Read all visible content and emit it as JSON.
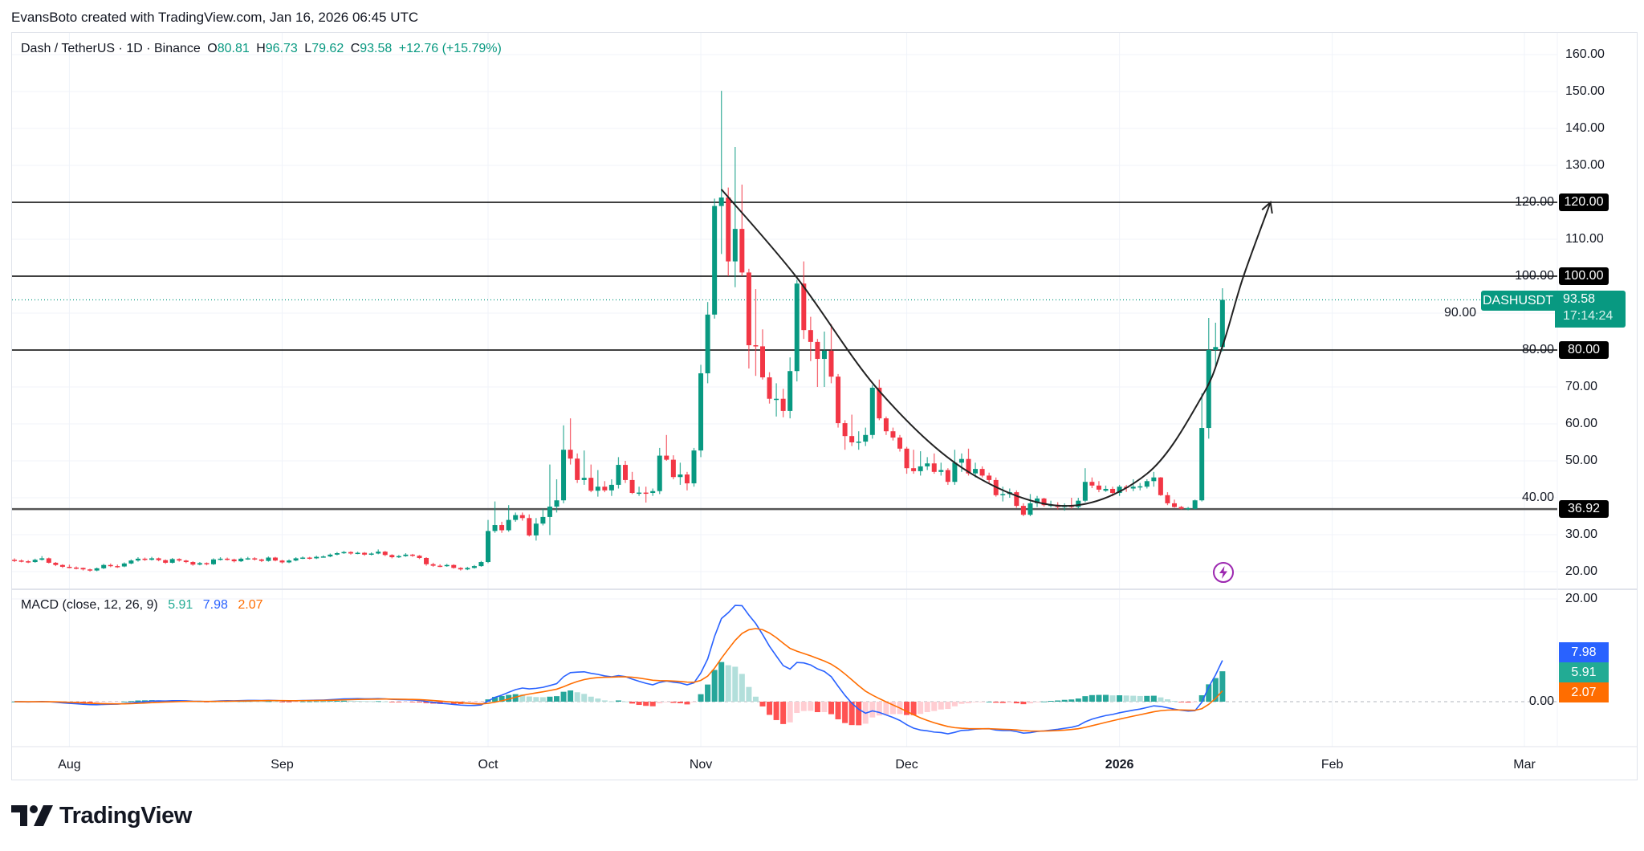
{
  "header": {
    "credit": "EvansBoto created with TradingView.com, Jan 16, 2026 06:45 UTC"
  },
  "legend": {
    "symbol": "Dash / TetherUS · 1D · Binance",
    "o_label": "O",
    "o": "80.81",
    "h_label": "H",
    "h": "96.73",
    "l_label": "L",
    "l": "79.62",
    "c_label": "C",
    "c": "93.58",
    "change": "+12.76 (+15.79%)"
  },
  "price_tag": {
    "symbol": "DASHUSDT",
    "price": "93.58",
    "countdown": "17:14:24"
  },
  "macd_legend": {
    "title": "MACD (close, 12, 26, 9)",
    "histogram": "5.91",
    "macd": "7.98",
    "signal": "2.07"
  },
  "logo": {
    "text": "TradingView"
  },
  "icons": {
    "alert": "lightning-bolt-icon",
    "logo": "tradingview-logo-icon"
  },
  "colors": {
    "up": "#089981",
    "down": "#f23645",
    "macd": "#2962ff",
    "signal": "#ff6d00",
    "hist_up_strong": "#26a69a",
    "hist_up_weak": "#b2dfdb",
    "hist_down_strong": "#ff5252",
    "hist_down_weak": "#ffcdd2",
    "level": "#000000",
    "alert": "#9c27b0"
  },
  "chart_data": {
    "type": "candlestick",
    "symbol": "DASHUSDT",
    "interval": "1D",
    "price_axis": {
      "range": [
        15,
        165
      ],
      "ticks": [
        "160.00",
        "150.00",
        "140.00",
        "130.00",
        "120.00",
        "110.00",
        "100.00",
        "90.00",
        "80.00",
        "70.00",
        "60.00",
        "50.00",
        "40.00",
        "30.00",
        "20.00"
      ],
      "grid": true
    },
    "time_axis": {
      "labels": [
        {
          "label": "Aug",
          "date": "2025-08-01"
        },
        {
          "label": "Sep",
          "date": "2025-09-01"
        },
        {
          "label": "Oct",
          "date": "2025-10-01"
        },
        {
          "label": "Nov",
          "date": "2025-11-01"
        },
        {
          "label": "Dec",
          "date": "2025-12-01"
        },
        {
          "label": "2026",
          "date": "2026-01-01",
          "bold": true
        },
        {
          "label": "Feb",
          "date": "2026-02-01"
        },
        {
          "label": "Mar",
          "date": "2026-03-01"
        }
      ]
    },
    "levels": [
      {
        "value": 120,
        "label": "120.00"
      },
      {
        "value": 100,
        "label": "100.00"
      },
      {
        "value": 80,
        "label": "80.00"
      },
      {
        "value": 36.92,
        "label": "36.92"
      }
    ],
    "last_price": 93.58,
    "curve_drawing": [
      [
        "2025-11-04",
        123.5
      ],
      [
        "2025-11-15",
        99.6
      ],
      [
        "2025-11-27",
        68.9
      ],
      [
        "2025-12-10",
        47
      ],
      [
        "2025-12-24",
        37.8
      ],
      [
        "2026-01-05",
        46.5
      ],
      [
        "2026-01-13",
        67.4
      ],
      [
        "2026-01-16",
        81
      ],
      [
        "2026-01-19",
        99.6
      ],
      [
        "2026-01-23",
        120
      ]
    ],
    "macd_axis": {
      "ticks": [
        "20.00",
        "0.00"
      ],
      "values": [
        20,
        0
      ]
    },
    "macd_params": {
      "source": "close",
      "fast": 12,
      "slow": 26,
      "signal": 9
    },
    "candles_fields": [
      "date",
      "open",
      "high",
      "low",
      "close"
    ],
    "candles": [
      [
        "2025-07-24",
        23.2,
        23.6,
        22.6,
        23.0
      ],
      [
        "2025-07-25",
        23.0,
        23.3,
        22.5,
        22.8
      ],
      [
        "2025-07-26",
        22.8,
        23.1,
        22.3,
        22.6
      ],
      [
        "2025-07-27",
        22.6,
        23.5,
        22.4,
        23.2
      ],
      [
        "2025-07-28",
        23.2,
        24.2,
        23.0,
        23.6
      ],
      [
        "2025-07-29",
        23.6,
        23.8,
        22.2,
        22.4
      ],
      [
        "2025-07-30",
        22.4,
        22.6,
        21.5,
        21.8
      ],
      [
        "2025-07-31",
        21.8,
        22.0,
        21.0,
        21.3
      ],
      [
        "2025-08-01",
        21.3,
        21.9,
        20.9,
        21.1
      ],
      [
        "2025-08-02",
        21.1,
        21.4,
        20.6,
        21.0
      ],
      [
        "2025-08-03",
        21.0,
        21.1,
        20.3,
        20.6
      ],
      [
        "2025-08-04",
        20.6,
        20.8,
        20.0,
        20.3
      ],
      [
        "2025-08-05",
        20.3,
        21.1,
        20.1,
        20.9
      ],
      [
        "2025-08-06",
        20.9,
        22.1,
        20.7,
        21.8
      ],
      [
        "2025-08-07",
        21.8,
        22.2,
        21.2,
        21.5
      ],
      [
        "2025-08-08",
        21.5,
        21.9,
        21.0,
        21.4
      ],
      [
        "2025-08-09",
        21.4,
        22.5,
        21.2,
        22.2
      ],
      [
        "2025-08-10",
        22.2,
        23.3,
        22.0,
        23.0
      ],
      [
        "2025-08-11",
        23.0,
        23.9,
        22.7,
        23.5
      ],
      [
        "2025-08-12",
        23.5,
        23.8,
        22.9,
        23.2
      ],
      [
        "2025-08-13",
        23.2,
        24.0,
        23.0,
        23.6
      ],
      [
        "2025-08-14",
        23.6,
        23.8,
        22.8,
        23.1
      ],
      [
        "2025-08-15",
        23.1,
        23.3,
        22.1,
        22.4
      ],
      [
        "2025-08-16",
        22.4,
        23.7,
        22.2,
        23.4
      ],
      [
        "2025-08-17",
        23.4,
        23.6,
        22.7,
        23.0
      ],
      [
        "2025-08-18",
        23.0,
        23.2,
        22.3,
        22.6
      ],
      [
        "2025-08-19",
        22.6,
        22.8,
        21.6,
        21.9
      ],
      [
        "2025-08-20",
        21.9,
        22.6,
        21.7,
        22.3
      ],
      [
        "2025-08-21",
        22.3,
        22.5,
        21.7,
        22.0
      ],
      [
        "2025-08-22",
        22.0,
        23.6,
        21.8,
        23.3
      ],
      [
        "2025-08-23",
        23.3,
        23.9,
        23.0,
        23.5
      ],
      [
        "2025-08-24",
        23.5,
        23.8,
        23.0,
        23.3
      ],
      [
        "2025-08-25",
        23.3,
        23.5,
        22.5,
        22.8
      ],
      [
        "2025-08-26",
        22.8,
        23.8,
        22.6,
        23.5
      ],
      [
        "2025-08-27",
        23.5,
        24.0,
        23.2,
        23.6
      ],
      [
        "2025-08-28",
        23.6,
        23.9,
        23.0,
        23.3
      ],
      [
        "2025-08-29",
        23.3,
        23.5,
        22.6,
        22.9
      ],
      [
        "2025-08-30",
        22.9,
        24.1,
        22.7,
        23.8
      ],
      [
        "2025-08-31",
        23.8,
        24.0,
        22.8,
        23.0
      ],
      [
        "2025-09-01",
        23.0,
        23.2,
        22.2,
        22.5
      ],
      [
        "2025-09-02",
        22.5,
        23.3,
        22.3,
        23.0
      ],
      [
        "2025-09-03",
        23.0,
        23.9,
        22.8,
        23.6
      ],
      [
        "2025-09-04",
        23.6,
        24.1,
        23.4,
        23.8
      ],
      [
        "2025-09-05",
        23.8,
        24.0,
        23.3,
        23.6
      ],
      [
        "2025-09-06",
        23.6,
        24.3,
        23.4,
        24.0
      ],
      [
        "2025-09-07",
        24.0,
        24.4,
        23.8,
        24.1
      ],
      [
        "2025-09-08",
        24.1,
        24.9,
        23.9,
        24.6
      ],
      [
        "2025-09-09",
        24.6,
        25.3,
        24.4,
        25.0
      ],
      [
        "2025-09-10",
        25.0,
        25.6,
        24.8,
        25.3
      ],
      [
        "2025-09-11",
        25.3,
        25.5,
        24.6,
        24.9
      ],
      [
        "2025-09-12",
        24.9,
        25.4,
        24.7,
        25.1
      ],
      [
        "2025-09-13",
        25.1,
        25.3,
        24.3,
        24.6
      ],
      [
        "2025-09-14",
        24.6,
        25.2,
        24.4,
        24.9
      ],
      [
        "2025-09-15",
        24.9,
        26.0,
        24.7,
        25.4
      ],
      [
        "2025-09-16",
        25.4,
        25.6,
        24.2,
        24.5
      ],
      [
        "2025-09-17",
        24.5,
        24.7,
        23.6,
        23.9
      ],
      [
        "2025-09-18",
        23.9,
        24.5,
        23.7,
        24.2
      ],
      [
        "2025-09-19",
        24.2,
        25.0,
        24.0,
        24.6
      ],
      [
        "2025-09-20",
        24.6,
        24.8,
        24.0,
        24.3
      ],
      [
        "2025-09-21",
        24.3,
        24.5,
        23.4,
        23.7
      ],
      [
        "2025-09-22",
        23.7,
        23.9,
        21.6,
        22.0
      ],
      [
        "2025-09-23",
        22.0,
        22.4,
        21.3,
        21.6
      ],
      [
        "2025-09-24",
        21.6,
        22.0,
        21.2,
        21.5
      ],
      [
        "2025-09-25",
        21.5,
        22.1,
        21.3,
        21.8
      ],
      [
        "2025-09-26",
        21.8,
        22.0,
        20.8,
        21.0
      ],
      [
        "2025-09-27",
        21.0,
        21.2,
        20.3,
        20.6
      ],
      [
        "2025-09-28",
        20.6,
        21.3,
        20.4,
        21.0
      ],
      [
        "2025-09-29",
        21.0,
        21.8,
        20.8,
        21.5
      ],
      [
        "2025-09-30",
        21.5,
        22.9,
        21.3,
        22.6
      ],
      [
        "2025-10-01",
        22.6,
        34,
        22.3,
        31
      ],
      [
        "2025-10-02",
        31,
        39,
        30.5,
        32.6
      ],
      [
        "2025-10-03",
        32.6,
        33.5,
        30.5,
        31.2
      ],
      [
        "2025-10-04",
        31.2,
        38,
        30.8,
        34
      ],
      [
        "2025-10-05",
        34,
        36,
        33.5,
        35.3
      ],
      [
        "2025-10-06",
        35.3,
        36,
        33.8,
        34.5
      ],
      [
        "2025-10-07",
        34.5,
        35.5,
        29.5,
        29.8
      ],
      [
        "2025-10-08",
        29.8,
        34.5,
        28.4,
        33
      ],
      [
        "2025-10-09",
        33,
        37,
        32.5,
        34.8
      ],
      [
        "2025-10-10",
        34.8,
        49,
        29.9,
        37.6
      ],
      [
        "2025-10-11",
        37.6,
        45,
        36,
        39.3
      ],
      [
        "2025-10-12",
        39.3,
        59.6,
        38.5,
        53
      ],
      [
        "2025-10-13",
        53,
        61.5,
        49,
        50.6
      ],
      [
        "2025-10-14",
        50.6,
        52,
        44,
        44.8
      ],
      [
        "2025-10-15",
        44.8,
        52.8,
        43.5,
        45.4
      ],
      [
        "2025-10-16",
        45.4,
        49,
        41.5,
        41.9
      ],
      [
        "2025-10-17",
        41.9,
        47.5,
        40.3,
        43
      ],
      [
        "2025-10-18",
        43,
        44.5,
        41.5,
        42
      ],
      [
        "2025-10-19",
        42,
        45,
        40.5,
        43.5
      ],
      [
        "2025-10-20",
        43.5,
        51,
        42.5,
        48.9
      ],
      [
        "2025-10-21",
        48.9,
        50,
        44,
        44.8
      ],
      [
        "2025-10-22",
        44.8,
        47,
        41,
        41.3
      ],
      [
        "2025-10-23",
        41.3,
        43,
        40.5,
        41.4
      ],
      [
        "2025-10-24",
        41.4,
        43,
        38.7,
        41.3
      ],
      [
        "2025-10-25",
        41.3,
        42.5,
        40.5,
        41.8
      ],
      [
        "2025-10-26",
        41.8,
        53.5,
        41,
        51.4
      ],
      [
        "2025-10-27",
        51.4,
        57,
        50,
        50.3
      ],
      [
        "2025-10-28",
        50.3,
        51.5,
        45,
        45.6
      ],
      [
        "2025-10-29",
        45.6,
        49.5,
        43.5,
        46.3
      ],
      [
        "2025-10-30",
        46.3,
        47,
        42,
        43.9
      ],
      [
        "2025-10-31",
        43.9,
        53.5,
        43,
        52.8
      ],
      [
        "2025-11-01",
        52.8,
        76,
        51,
        73.7
      ],
      [
        "2025-11-02",
        73.7,
        93,
        71,
        89.6
      ],
      [
        "2025-11-03",
        89.6,
        121,
        88.5,
        119
      ],
      [
        "2025-11-04",
        119,
        150.2,
        106,
        121.3
      ],
      [
        "2025-11-05",
        121.3,
        124,
        100,
        104
      ],
      [
        "2025-11-06",
        104,
        135,
        97,
        112.8
      ],
      [
        "2025-11-07",
        112.8,
        124.8,
        100,
        101
      ],
      [
        "2025-11-08",
        101,
        102,
        75,
        81.3
      ],
      [
        "2025-11-09",
        81.3,
        96.5,
        73,
        81
      ],
      [
        "2025-11-10",
        81,
        85.6,
        72,
        72.6
      ],
      [
        "2025-11-11",
        72.6,
        74,
        65.5,
        66.8
      ],
      [
        "2025-11-12",
        66.8,
        71,
        62,
        66.8
      ],
      [
        "2025-11-13",
        66.8,
        69.5,
        61.8,
        63.5
      ],
      [
        "2025-11-14",
        63.5,
        78,
        61.5,
        74.3
      ],
      [
        "2025-11-15",
        74.3,
        99,
        71.5,
        98
      ],
      [
        "2025-11-16",
        98,
        104,
        83,
        85.4
      ],
      [
        "2025-11-17",
        85.4,
        89,
        77,
        82.2
      ],
      [
        "2025-11-18",
        82.2,
        83,
        70,
        77.6
      ],
      [
        "2025-11-19",
        77.6,
        85,
        70,
        79.8
      ],
      [
        "2025-11-20",
        79.8,
        87,
        71,
        72.8
      ],
      [
        "2025-11-21",
        72.8,
        73.5,
        59,
        60.2
      ],
      [
        "2025-11-22",
        60.2,
        61,
        53,
        56.7
      ],
      [
        "2025-11-23",
        56.7,
        62.5,
        54,
        55
      ],
      [
        "2025-11-24",
        55,
        58,
        53,
        55.2
      ],
      [
        "2025-11-25",
        55.2,
        59,
        54,
        57
      ],
      [
        "2025-11-26",
        57,
        70.5,
        56,
        69.8
      ],
      [
        "2025-11-27",
        69.8,
        72,
        61,
        61.5
      ],
      [
        "2025-11-28",
        61.5,
        62,
        57,
        58
      ],
      [
        "2025-11-29",
        58,
        59,
        55.5,
        56.3
      ],
      [
        "2025-11-30",
        56.3,
        57,
        52.5,
        53.3
      ],
      [
        "2025-12-01",
        53.3,
        53.8,
        46.5,
        48
      ],
      [
        "2025-12-02",
        48,
        53,
        46.5,
        47.2
      ],
      [
        "2025-12-03",
        47.2,
        52.6,
        46,
        48.5
      ],
      [
        "2025-12-04",
        48.5,
        51,
        47.5,
        49.3
      ],
      [
        "2025-12-05",
        49.3,
        52,
        46.5,
        47
      ],
      [
        "2025-12-06",
        47,
        49.5,
        46,
        47.5
      ],
      [
        "2025-12-07",
        47.5,
        48,
        43.5,
        44.3
      ],
      [
        "2025-12-08",
        44.3,
        53,
        43.5,
        49.5
      ],
      [
        "2025-12-09",
        49.5,
        52,
        47,
        50.5
      ],
      [
        "2025-12-10",
        50.5,
        53.3,
        46,
        46.6
      ],
      [
        "2025-12-11",
        46.6,
        49.5,
        45.5,
        47.8
      ],
      [
        "2025-12-12",
        47.8,
        48.5,
        45.5,
        46
      ],
      [
        "2025-12-13",
        46,
        46.8,
        44,
        44.8
      ],
      [
        "2025-12-14",
        44.8,
        45.5,
        40.3,
        40.7
      ],
      [
        "2025-12-15",
        40.7,
        43,
        39,
        41
      ],
      [
        "2025-12-16",
        41,
        42.5,
        40,
        41.5
      ],
      [
        "2025-12-17",
        41.5,
        42,
        37.3,
        37.8
      ],
      [
        "2025-12-18",
        37.8,
        38.5,
        35,
        35.4
      ],
      [
        "2025-12-19",
        35.4,
        41,
        35,
        38.5
      ],
      [
        "2025-12-20",
        38.5,
        40.5,
        37.5,
        39.8
      ],
      [
        "2025-12-21",
        39.8,
        40,
        37.6,
        38
      ],
      [
        "2025-12-22",
        38,
        39.2,
        37.4,
        38.1
      ],
      [
        "2025-12-23",
        38.1,
        38.8,
        36.8,
        37.5
      ],
      [
        "2025-12-24",
        37.5,
        38.5,
        36.5,
        38
      ],
      [
        "2025-12-25",
        38,
        40,
        37,
        37.5
      ],
      [
        "2025-12-26",
        37.5,
        40,
        37,
        39.2
      ],
      [
        "2025-12-27",
        39.2,
        48,
        38.8,
        44.3
      ],
      [
        "2025-12-28",
        44.3,
        45.5,
        42.6,
        43.3
      ],
      [
        "2025-12-29",
        43.3,
        44.5,
        41.5,
        42.2
      ],
      [
        "2025-12-30",
        41.9,
        43.3,
        41.6,
        42.4
      ],
      [
        "2025-12-31",
        42.4,
        43,
        40.4,
        41.3
      ],
      [
        "2026-01-01",
        41.3,
        43.5,
        40.5,
        43
      ],
      [
        "2026-01-02",
        43,
        43.5,
        41.6,
        42.7
      ],
      [
        "2026-01-03",
        42.5,
        45,
        41.8,
        43
      ],
      [
        "2026-01-04",
        43,
        44,
        42,
        43.1
      ],
      [
        "2026-01-05",
        43,
        45,
        42.5,
        44.5
      ],
      [
        "2026-01-06",
        44.5,
        47,
        43,
        45.5
      ],
      [
        "2026-01-07",
        45.5,
        45.6,
        40.5,
        40.7
      ],
      [
        "2026-01-08",
        40.7,
        41.5,
        38,
        38.5
      ],
      [
        "2026-01-09",
        38.5,
        39.5,
        37.3,
        37.5
      ],
      [
        "2026-01-10",
        37.5,
        37.8,
        36.8,
        37
      ],
      [
        "2026-01-11",
        37,
        37.5,
        36.6,
        37.2
      ],
      [
        "2026-01-12",
        37,
        39.5,
        36.8,
        39.3
      ],
      [
        "2026-01-13",
        39.3,
        68.3,
        39,
        58.9
      ],
      [
        "2026-01-14",
        58.9,
        88.7,
        56,
        80
      ],
      [
        "2026-01-15",
        80,
        87.4,
        75.4,
        80.81
      ],
      [
        "2026-01-16",
        80.81,
        96.73,
        79.62,
        93.58
      ]
    ]
  }
}
